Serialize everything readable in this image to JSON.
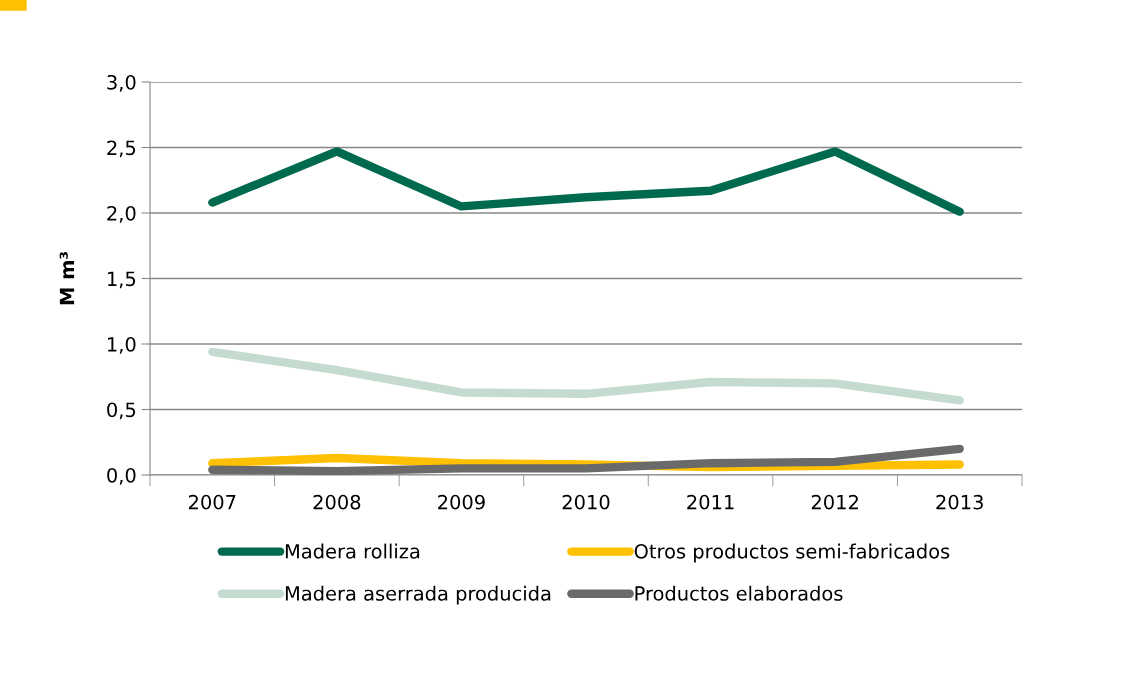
{
  "chart_data": {
    "type": "line",
    "ylabel": "M m³",
    "categories": [
      "2007",
      "2008",
      "2009",
      "2010",
      "2011",
      "2012",
      "2013"
    ],
    "series": [
      {
        "name": "Madera rolliza",
        "color": "#006a4e",
        "values": [
          2.08,
          2.47,
          2.05,
          2.12,
          2.17,
          2.47,
          2.01
        ]
      },
      {
        "name": "Madera aserrada producida",
        "color": "#c5dbd0",
        "values": [
          0.94,
          0.8,
          0.63,
          0.62,
          0.71,
          0.7,
          0.57
        ]
      },
      {
        "name": "Otros productos semi-fabricados",
        "color": "#ffc000",
        "values": [
          0.09,
          0.13,
          0.09,
          0.08,
          0.06,
          0.07,
          0.08
        ]
      },
      {
        "name": "Productos elaborados",
        "color": "#6a6a6a",
        "values": [
          0.04,
          0.03,
          0.05,
          0.05,
          0.09,
          0.1,
          0.2
        ]
      }
    ],
    "ylim": [
      0,
      3.0
    ],
    "yticks": [
      {
        "value": 0,
        "label": "0,0"
      },
      {
        "value": 0.5,
        "label": "0,5"
      },
      {
        "value": 1.0,
        "label": "1,0"
      },
      {
        "value": 1.5,
        "label": "1,5"
      },
      {
        "value": 2.0,
        "label": "2,0"
      },
      {
        "value": 2.5,
        "label": "2,5"
      },
      {
        "value": 3.0,
        "label": "3,0"
      }
    ],
    "grid": "y",
    "legend": "bottom",
    "marker": "none",
    "line_style": "solid"
  }
}
